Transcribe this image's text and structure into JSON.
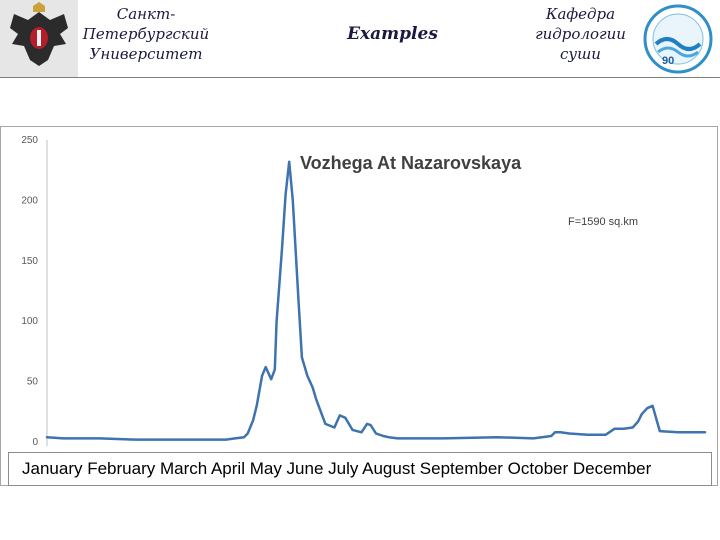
{
  "header": {
    "university_lines": [
      "Санкт-",
      "Петербургский",
      "Университет"
    ],
    "slide_title": "Examples",
    "department_lines": [
      "Кафедра",
      "гидрологии",
      "суши"
    ],
    "logo_text": "90"
  },
  "colors": {
    "line": "#3e73b0",
    "axis_text": "#595959",
    "title": "#404040"
  },
  "chart_data": {
    "type": "line",
    "title": "Vozhega At Nazarovskaya",
    "annotation": "F=1590 sq.km",
    "xlabel": "January February March April May June July August September October December",
    "ylabel": "",
    "ylim": [
      0,
      250
    ],
    "yticks": [
      0,
      50,
      100,
      150,
      200,
      250
    ],
    "grid": false,
    "x_unit": "day of year",
    "series": [
      {
        "x": [
          1,
          10,
          30,
          50,
          70,
          90,
          100,
          105,
          110,
          112,
          115,
          117,
          120,
          122,
          125,
          127,
          128,
          130,
          131,
          133,
          135,
          137,
          140,
          142,
          145,
          148,
          150,
          155,
          160,
          163,
          166,
          170,
          175,
          178,
          180,
          183,
          187,
          190,
          195,
          200,
          220,
          250,
          270,
          280,
          282,
          285,
          290,
          300,
          310,
          315,
          320,
          325,
          328,
          330,
          333,
          336,
          340,
          350,
          365
        ],
        "y": [
          4,
          3,
          3,
          2,
          2,
          2,
          2,
          3,
          4,
          7,
          18,
          30,
          55,
          62,
          52,
          60,
          100,
          140,
          160,
          205,
          232,
          200,
          120,
          70,
          55,
          45,
          35,
          15,
          12,
          22,
          20,
          10,
          8,
          15,
          14,
          7,
          5,
          4,
          3,
          3,
          3,
          4,
          3,
          5,
          8,
          8,
          7,
          6,
          6,
          11,
          11,
          12,
          17,
          23,
          28,
          30,
          9,
          8,
          8
        ]
      }
    ]
  }
}
